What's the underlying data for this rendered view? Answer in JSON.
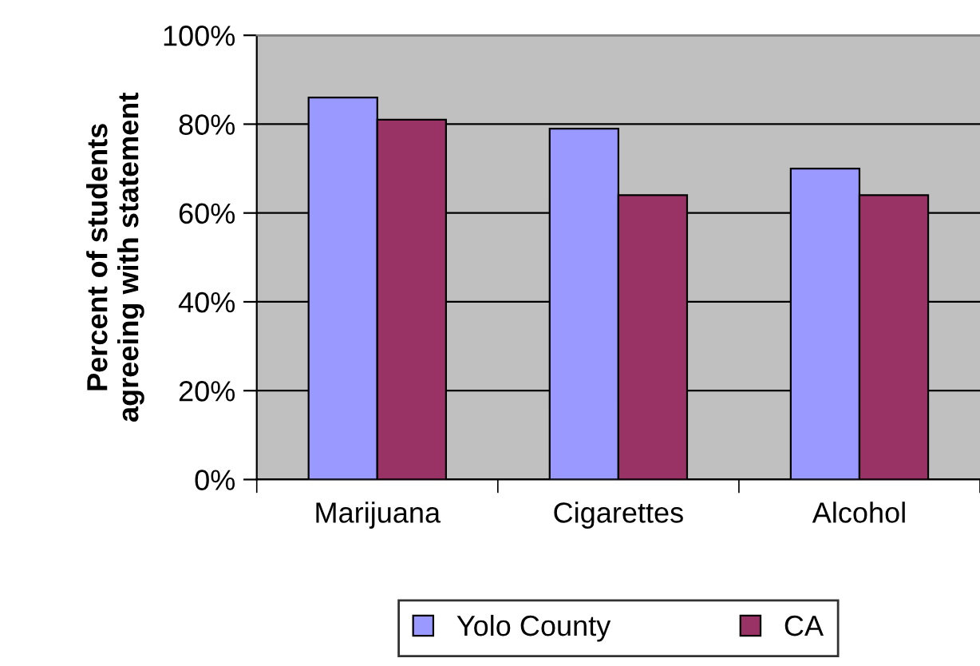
{
  "chart_data": {
    "type": "bar",
    "ylabel": "Percent of students\nagreeing with statement",
    "categories": [
      "Marijuana",
      "Cigarettes",
      "Alcohol"
    ],
    "series": [
      {
        "name": "Yolo County",
        "color": "#9999ff",
        "values": [
          86,
          79,
          70
        ]
      },
      {
        "name": "CA",
        "color": "#993366",
        "values": [
          81,
          64,
          64
        ]
      }
    ],
    "ylim": [
      0,
      100
    ],
    "yticks": [
      {
        "value": 0,
        "label": "0%"
      },
      {
        "value": 20,
        "label": "20%"
      },
      {
        "value": 40,
        "label": "40%"
      },
      {
        "value": 60,
        "label": "60%"
      },
      {
        "value": 80,
        "label": "80%"
      },
      {
        "value": 100,
        "label": "100%"
      }
    ],
    "grid": "y",
    "legend": "bottom"
  }
}
